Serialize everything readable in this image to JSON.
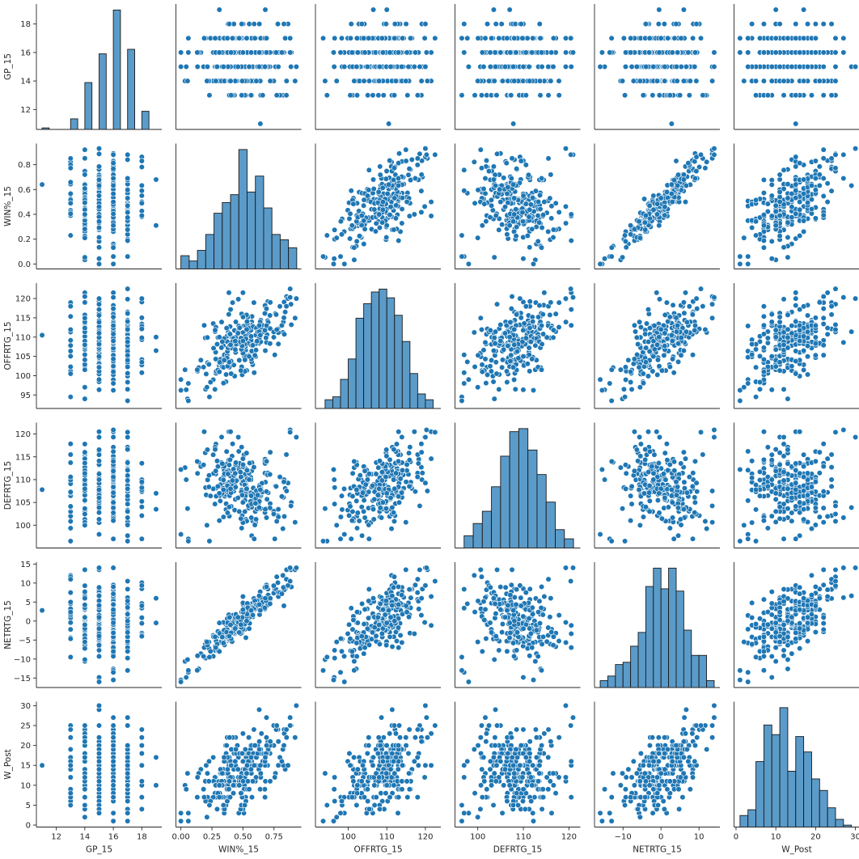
{
  "chart_data": {
    "type": "pairplot",
    "variables": [
      "GP_15",
      "WIN%_15",
      "OFFRTG_15",
      "DEFRTG_15",
      "NETRTG_15",
      "W_Post"
    ],
    "axis_labels": [
      "GP_15",
      "WIN%_15",
      "OFFRTG_15",
      "DEFRTG_15",
      "NETRTG_15",
      "W_Post"
    ],
    "color": "#1f77b4",
    "hist_color": "#5b9bc9",
    "ranges": {
      "GP_15": [
        10.6,
        19.4
      ],
      "WIN%_15": [
        -0.04,
        0.97
      ],
      "OFFRTG_15": [
        91.5,
        124.0
      ],
      "DEFRTG_15": [
        95.0,
        122.5
      ],
      "NETRTG_15": [
        -17.5,
        15.5
      ],
      "W_Post": [
        -0.5,
        31.0
      ]
    },
    "ticks": {
      "GP_15": {
        "values": [
          12,
          14,
          16,
          18
        ],
        "labels": [
          "12",
          "14",
          "16",
          "18"
        ]
      },
      "WIN%_15": {
        "values": [
          0,
          0.25,
          0.5,
          0.75
        ],
        "labels": [
          "0.00",
          "0.25",
          "0.50",
          "0.75"
        ]
      },
      "WIN%_15_y": {
        "values": [
          0,
          0.2,
          0.4,
          0.6,
          0.8
        ],
        "labels": [
          "0.0",
          "0.2",
          "0.4",
          "0.6",
          "0.8"
        ]
      },
      "OFFRTG_15": {
        "values": [
          100,
          110,
          120
        ],
        "labels": [
          "100",
          "110",
          "120"
        ]
      },
      "OFFRTG_15_y": {
        "values": [
          95,
          100,
          105,
          110,
          115,
          120
        ],
        "labels": [
          "95",
          "100",
          "105",
          "110",
          "115",
          "120"
        ]
      },
      "DEFRTG_15": {
        "values": [
          100,
          110,
          120
        ],
        "labels": [
          "100",
          "110",
          "120"
        ]
      },
      "DEFRTG_15_y": {
        "values": [
          100,
          105,
          110,
          115,
          120
        ],
        "labels": [
          "100",
          "105",
          "110",
          "115",
          "120"
        ]
      },
      "NETRTG_15": {
        "values": [
          -10,
          0,
          10
        ],
        "labels": [
          "−10",
          "0",
          "10"
        ]
      },
      "NETRTG_15_y": {
        "values": [
          -15,
          -10,
          -5,
          0,
          5,
          10,
          15
        ],
        "labels": [
          "−15",
          "−10",
          "−5",
          "0",
          "5",
          "10",
          "15"
        ]
      },
      "W_Post": {
        "values": [
          0,
          10,
          20,
          30
        ],
        "labels": [
          "0",
          "10",
          "20",
          "30"
        ]
      },
      "W_Post_y": {
        "values": [
          0,
          5,
          10,
          15,
          20,
          25,
          30
        ],
        "labels": [
          "0",
          "5",
          "10",
          "15",
          "20",
          "25",
          "30"
        ]
      }
    },
    "histograms": {
      "GP_15": {
        "edges": [
          11,
          11.5,
          12,
          12.5,
          13,
          13.5,
          14,
          14.5,
          15,
          15.5,
          16,
          16.5,
          17,
          17.5,
          18,
          18.5,
          19
        ],
        "counts": [
          1,
          0,
          0,
          0,
          7,
          0,
          31,
          0,
          50,
          0,
          79,
          0,
          53,
          0,
          12,
          0,
          3
        ]
      },
      "WIN%_15": {
        "edges": [
          0,
          0.0667,
          0.1333,
          0.2,
          0.2667,
          0.3333,
          0.4,
          0.4667,
          0.5333,
          0.6,
          0.6667,
          0.7333,
          0.8,
          0.8667,
          0.9333
        ],
        "counts": [
          5,
          3,
          7,
          13,
          21,
          25,
          28,
          45,
          29,
          35,
          23,
          13,
          11,
          8
        ]
      },
      "OFFRTG_15": {
        "edges": [
          94,
          96,
          98,
          100,
          102,
          104,
          106,
          108,
          110,
          112,
          114,
          116,
          118,
          120,
          122
        ],
        "counts": [
          3,
          4,
          10,
          17,
          31,
          36,
          40,
          41,
          38,
          32,
          23,
          12,
          5,
          3
        ]
      },
      "DEFRTG_15": {
        "edges": [
          97,
          99,
          101,
          103,
          105,
          107,
          109,
          111,
          113,
          115,
          117,
          119,
          121
        ],
        "counts": [
          4,
          8,
          12,
          20,
          30,
          38,
          39,
          32,
          24,
          15,
          6,
          3
        ]
      },
      "NETRTG_15": {
        "edges": [
          -16,
          -14,
          -12,
          -10,
          -8,
          -6,
          -4,
          -2,
          0,
          2,
          4,
          6,
          8,
          10,
          12,
          14
        ],
        "counts": [
          3,
          5,
          10,
          11,
          18,
          24,
          44,
          52,
          43,
          52,
          42,
          25,
          14,
          14,
          3
        ]
      },
      "W_Post": {
        "edges": [
          1,
          3,
          5,
          7,
          9,
          11,
          13,
          15,
          17,
          19,
          21,
          23,
          25,
          27,
          29
        ],
        "counts": [
          6,
          9,
          34,
          53,
          48,
          62,
          29,
          47,
          39,
          25,
          19,
          10,
          4,
          1
        ]
      }
    },
    "sample_points": {
      "GP_15": [
        11,
        13,
        13,
        14,
        14,
        14,
        15,
        15,
        15,
        15,
        16,
        16,
        16,
        16,
        16,
        17,
        17,
        17,
        17,
        18,
        18,
        19,
        19
      ],
      "WIN%_15": [
        0.64,
        0.23,
        0.85,
        0.21,
        0.72,
        0.4,
        0.0,
        0.93,
        0.46,
        0.55,
        0.06,
        0.88,
        0.5,
        0.31,
        0.69,
        0.06,
        0.88,
        0.53,
        0.47,
        0.83,
        0.39,
        0.31,
        0.68
      ],
      "OFFRTG_15": [
        110.5,
        94.5,
        118,
        97,
        119,
        108,
        99,
        120,
        111,
        105,
        98,
        120.3,
        109,
        101,
        113,
        93.5,
        122.5,
        112,
        104,
        115,
        103.5,
        110,
        106.5
      ],
      "DEFRTG_15": [
        107.8,
        96.5,
        115.5,
        100,
        116,
        108,
        98,
        119.3,
        106,
        110,
        97,
        120.9,
        105,
        101,
        114,
        96.5,
        120.4,
        108,
        103,
        109.5,
        104,
        107,
        103.5
      ],
      "NETRTG_15": [
        2.8,
        -9.5,
        11,
        -5.5,
        6,
        -1,
        -16,
        14,
        1,
        -2,
        -13.5,
        14,
        3,
        -8,
        9,
        -13,
        10.5,
        0,
        -3,
        4,
        -4,
        -0.5,
        6
      ],
      "W_Post": [
        15,
        5,
        24,
        2,
        21,
        12,
        3,
        30,
        14,
        9,
        3,
        27,
        16,
        7,
        20,
        1,
        25,
        13,
        10,
        20,
        11,
        10,
        17
      ]
    }
  }
}
